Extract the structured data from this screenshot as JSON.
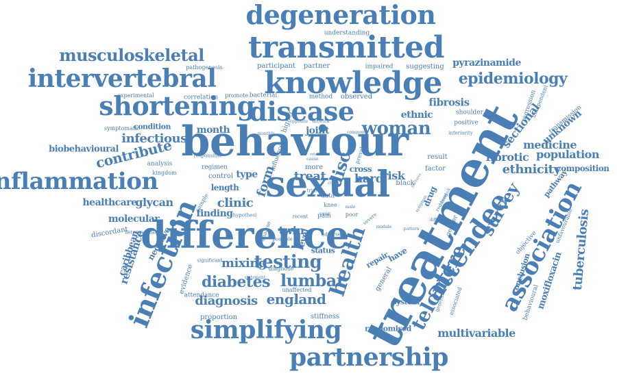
{
  "word_color": "#4a7fb5",
  "words": [
    "behaviour",
    "treatment",
    "sexual",
    "difference",
    "knowledge",
    "transmitted",
    "degeneration",
    "intervertebral",
    "shortening",
    "disease",
    "infection",
    "attendee",
    "association",
    "partnership",
    "simplifying",
    "inflammation",
    "musculoskeletal",
    "woman",
    "telomere",
    "health",
    "testing",
    "lumbar",
    "diabetes",
    "england",
    "epidemiology",
    "survey",
    "tuberculosis",
    "ethnicity",
    "medicine",
    "population",
    "fibrotic",
    "sectional",
    "unknown",
    "contribute",
    "infectious",
    "biobehavioural",
    "healthcare",
    "glycan",
    "molecular",
    "clinic",
    "finding",
    "mixing",
    "diagnosis",
    "multivariable",
    "randomised",
    "pyrazinamide",
    "fibrosis",
    "ethnic",
    "month",
    "joint",
    "disc",
    "treat",
    "hard",
    "risk",
    "form",
    "type",
    "length",
    "control",
    "resistance",
    "caribbean",
    "negative",
    "discordant",
    "analysis",
    "kingdom",
    "condition",
    "symptomatic",
    "experimental",
    "correlation",
    "promote",
    "bacterial",
    "method",
    "observed",
    "suggesting",
    "impaired",
    "participant",
    "partner",
    "pathogenesis",
    "understanding",
    "stiffness",
    "proportion",
    "attendance",
    "evidence",
    "status",
    "level",
    "twin",
    "system",
    "general",
    "repair",
    "have",
    "result",
    "factor",
    "black",
    "drug",
    "composition",
    "pathway",
    "moxifloxacin",
    "conclusion",
    "behavioural",
    "objective",
    "unfavourable",
    "regression",
    "independent",
    "transmission",
    "positive",
    "shoulder",
    "inferiority",
    "gender",
    "cross",
    "prevalence",
    "common",
    "data",
    "knee",
    "year",
    "pain",
    "poor",
    "sample",
    "influence",
    "higher",
    "regimen",
    "responsible",
    "heterosexual",
    "significant",
    "statement",
    "unaffected",
    "diagnose",
    "hypothesi",
    "analyse",
    "possible",
    "adverse",
    "recent",
    "more",
    "network",
    "monthly",
    "relative",
    "cause",
    "severe",
    "opposite",
    "trial",
    "different",
    "reduced",
    "associated",
    "symptom",
    "cohort",
    "male",
    "module",
    "pattern",
    "varied",
    "fractures",
    "twinsuk",
    "generation"
  ]
}
